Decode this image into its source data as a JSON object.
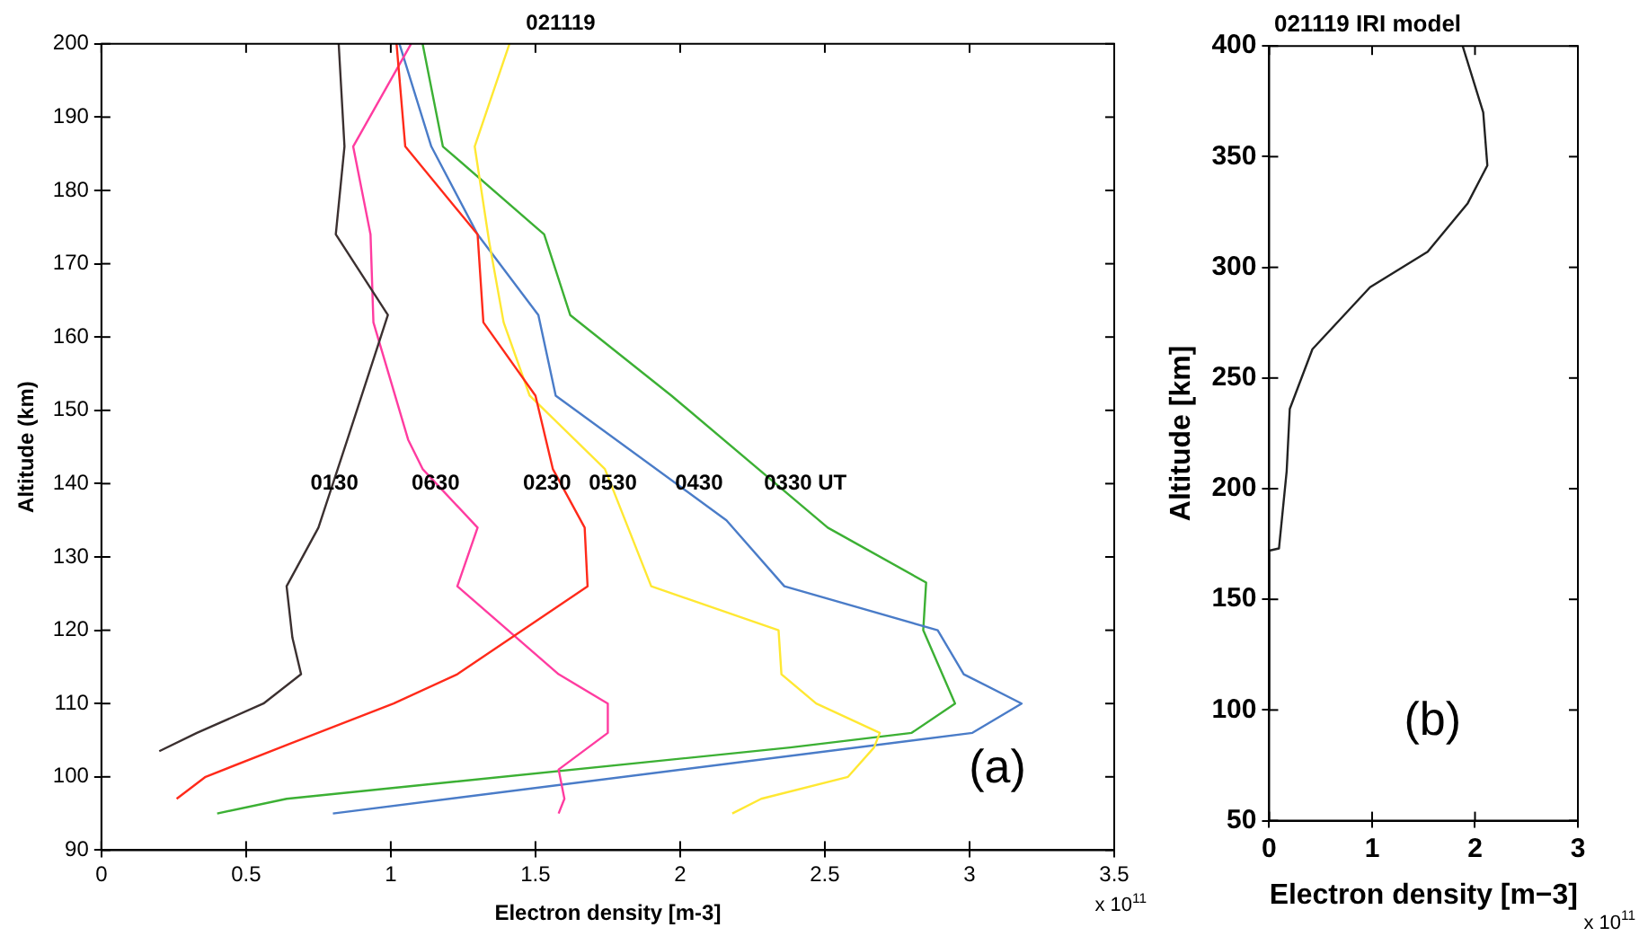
{
  "chart_data": [
    {
      "type": "line",
      "title": "021119",
      "xlabel": "Electron density [m-3]",
      "ylabel": "Altitude (km)",
      "xlim": [
        0,
        3.5
      ],
      "xticks": [
        0,
        0.5,
        1,
        1.5,
        2,
        2.5,
        3,
        3.5
      ],
      "ylim": [
        90,
        200
      ],
      "yticks": [
        90,
        100,
        110,
        120,
        130,
        140,
        150,
        160,
        170,
        180,
        190,
        200
      ],
      "grid": false,
      "legend": false,
      "marker": "none",
      "line_style": "solid",
      "annotations": [
        "x 10$^{11}$",
        "(a)"
      ],
      "series": [
        {
          "name": "0130",
          "color": "#3b3030",
          "x": [
            0.82,
            0.84,
            0.81,
            0.99,
            0.85,
            0.75,
            0.64,
            0.66,
            0.69,
            0.56,
            0.33,
            0.2
          ],
          "values": [
            200,
            186,
            174,
            163,
            146,
            134,
            126,
            119,
            114,
            110,
            106,
            103.5
          ]
        },
        {
          "name": "0230",
          "color": "#ff2a1a",
          "x": [
            1.02,
            1.05,
            1.3,
            1.32,
            1.5,
            1.56,
            1.67,
            1.68,
            1.23,
            1.01,
            0.65,
            0.36,
            0.26
          ],
          "values": [
            200,
            186,
            174,
            162,
            152,
            142,
            134,
            126,
            114,
            110,
            104.5,
            100,
            97
          ]
        },
        {
          "name": "0630",
          "color": "#ff3ca0",
          "x": [
            1.07,
            0.87,
            0.93,
            0.94,
            1.06,
            1.11,
            1.3,
            1.23,
            1.58,
            1.75,
            1.75,
            1.58,
            1.6,
            1.58
          ],
          "values": [
            200,
            186,
            174,
            162,
            146,
            142,
            134,
            126,
            114,
            110,
            106,
            101,
            97,
            95
          ]
        },
        {
          "name": "0530",
          "color": "#ffe833",
          "x": [
            1.41,
            1.29,
            1.34,
            1.39,
            1.48,
            1.74,
            1.9,
            2.34,
            2.35,
            2.47,
            2.69,
            2.67,
            2.58,
            2.28,
            2.18
          ],
          "values": [
            200,
            186,
            173,
            162,
            152,
            142,
            126,
            120,
            114,
            110,
            106,
            104,
            100,
            97,
            95
          ]
        },
        {
          "name": "0430",
          "color": "#4a7cc8",
          "x": [
            1.03,
            1.14,
            1.3,
            1.51,
            1.57,
            2.16,
            2.36,
            2.89,
            2.98,
            3.18,
            3.01,
            0.8
          ],
          "values": [
            200,
            186,
            174,
            163,
            152,
            135,
            126,
            120,
            114,
            110,
            106,
            95
          ]
        },
        {
          "name": "0330 UT",
          "color": "#3cb034",
          "x": [
            1.11,
            1.18,
            1.53,
            1.62,
            1.97,
            2.51,
            2.85,
            2.84,
            2.95,
            2.8,
            2.38,
            0.64,
            0.4
          ],
          "values": [
            200,
            186,
            174,
            163,
            152,
            134,
            126.5,
            120,
            110,
            106,
            104,
            97,
            95
          ]
        }
      ]
    },
    {
      "type": "line",
      "title": "021119 IRI model",
      "xlabel": "Electron density [m−3]",
      "ylabel": "Altitude [km]",
      "xlim": [
        0,
        3
      ],
      "xticks": [
        0,
        1,
        2,
        3
      ],
      "ylim": [
        50,
        400
      ],
      "yticks": [
        50,
        100,
        150,
        200,
        250,
        300,
        350,
        400
      ],
      "grid": false,
      "legend": false,
      "marker": "none",
      "line_style": "solid",
      "annotations": [
        "x 10$^{11}$",
        "(b)"
      ],
      "series": [
        {
          "color": "#222222",
          "x": [
            0.01,
            0,
            0.095,
            0.17,
            0.2,
            0.42,
            0.98,
            1.54,
            1.93,
            2.12,
            2.08,
            1.88
          ],
          "values": [
            100,
            172,
            173,
            208,
            236,
            263,
            291,
            307,
            329,
            346,
            370,
            400
          ]
        }
      ]
    }
  ]
}
